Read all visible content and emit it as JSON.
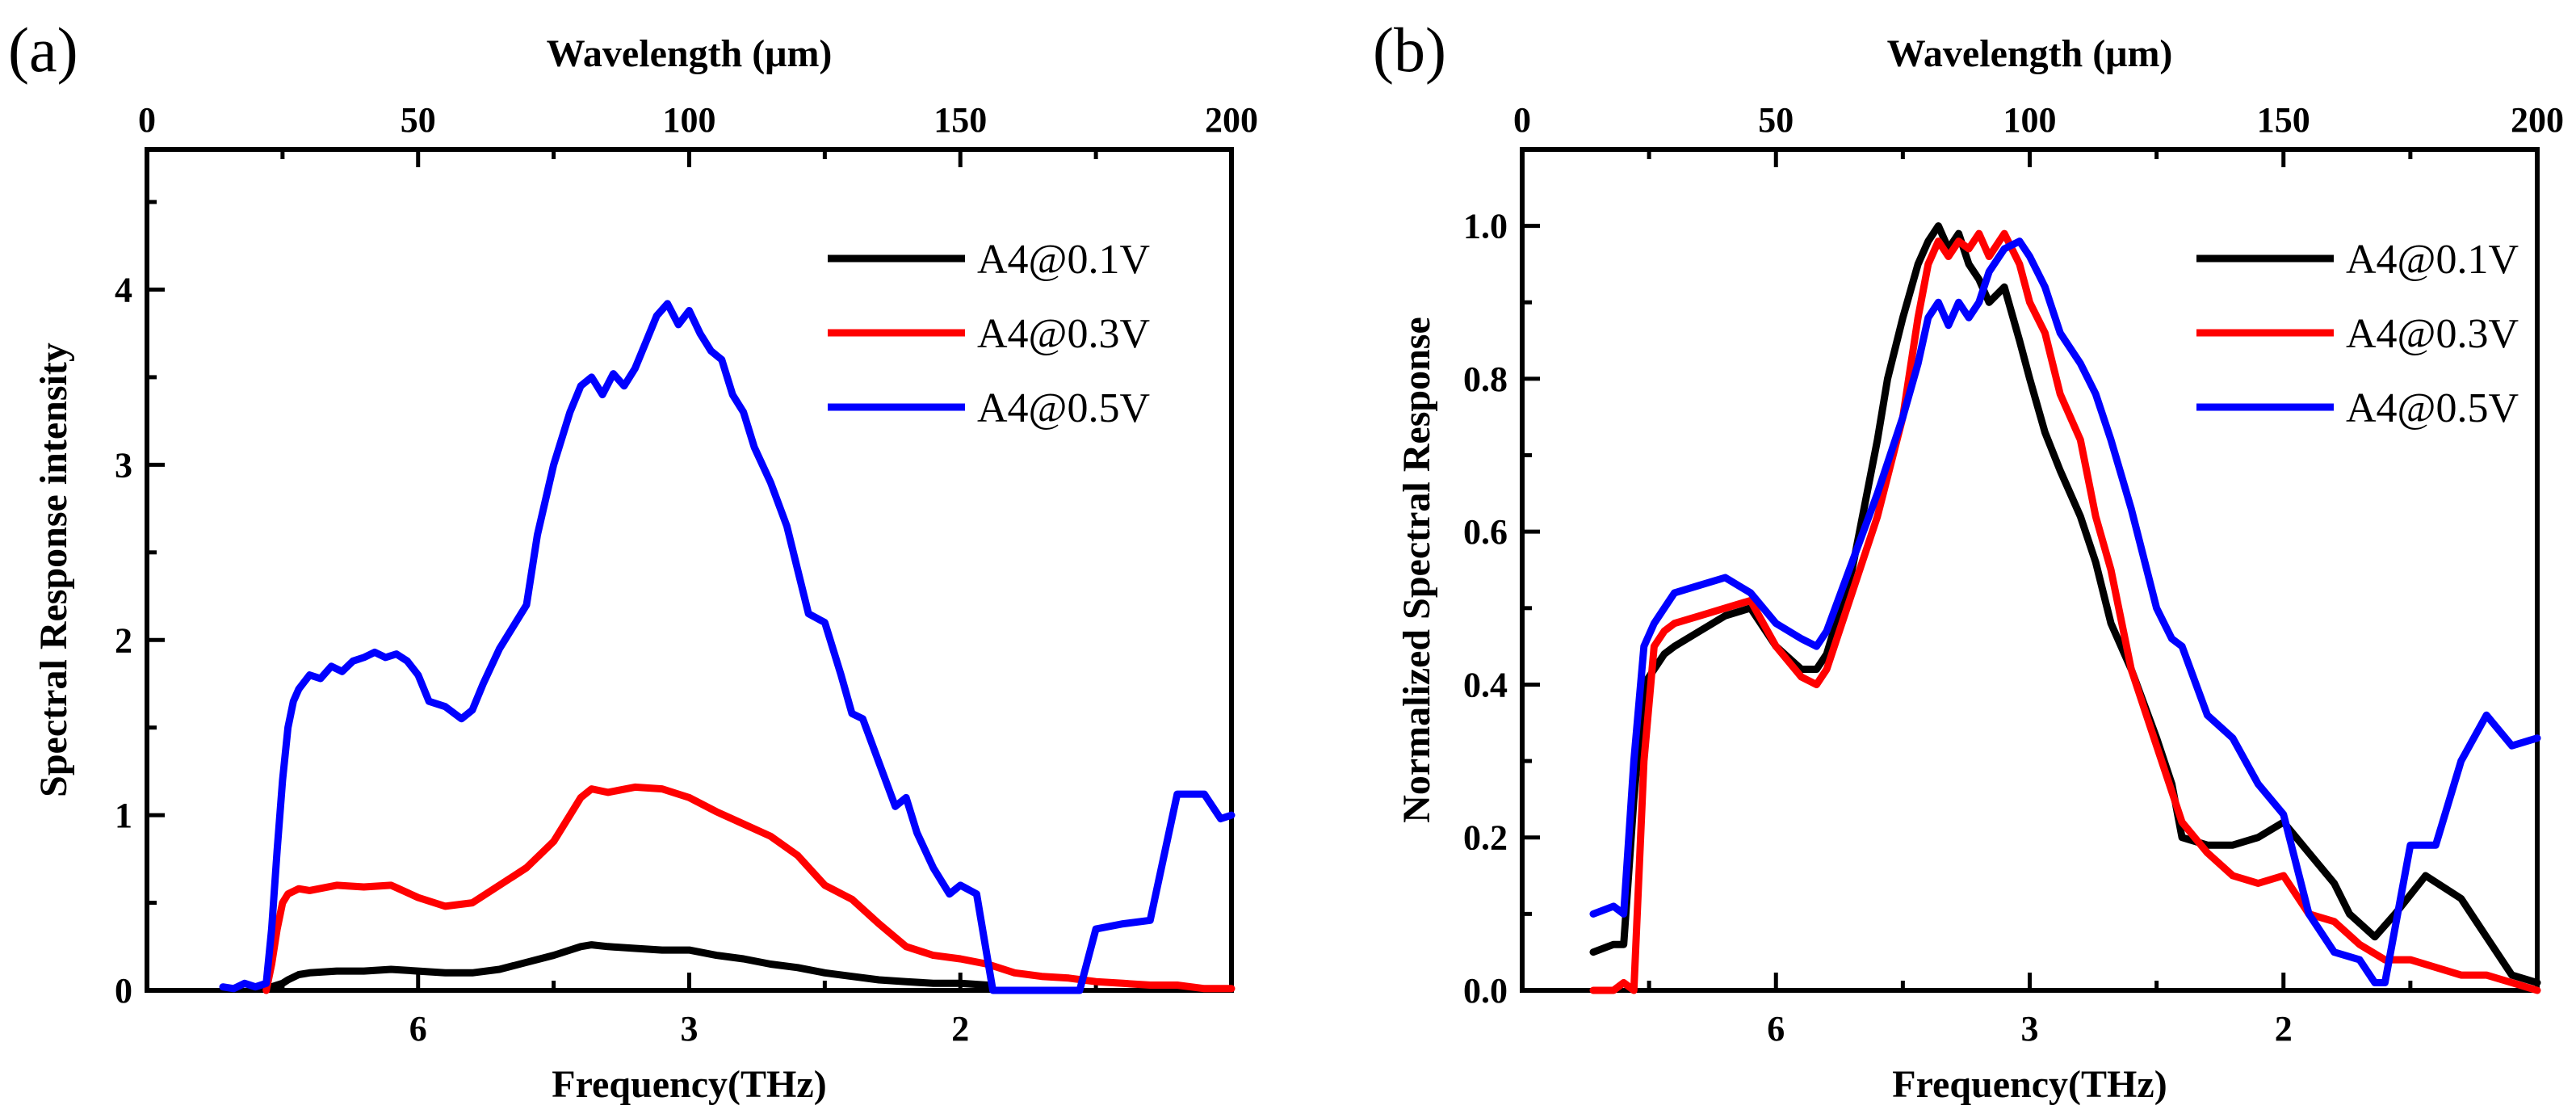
{
  "chart_data": [
    {
      "type": "line",
      "panel_label": "(a)",
      "xlabel": "Frequency(THz)",
      "x2label": "Wavelength (μm)",
      "ylabel": "Spectral Response intensity",
      "wavelength_range": [
        0,
        200
      ],
      "ylim": [
        0,
        4.8
      ],
      "bottom_ticks": [
        {
          "label": "6",
          "wl": 50
        },
        {
          "label": "3",
          "wl": 100
        },
        {
          "label": "2",
          "wl": 150
        }
      ],
      "top_ticks": [
        "0",
        "50",
        "100",
        "150",
        "200"
      ],
      "top_tick_values": [
        0,
        50,
        100,
        150,
        200
      ],
      "y_ticks": [
        "0",
        "1",
        "2",
        "3",
        "4"
      ],
      "y_tick_values": [
        0,
        1,
        2,
        3,
        4
      ],
      "legend": [
        "A4@0.1V",
        "A4@0.3V",
        "A4@0.5V"
      ],
      "legend_position": "top-right",
      "series": [
        {
          "name": "A4@0.1V",
          "color": "#000000",
          "x": [
            23,
            25,
            26,
            28,
            30,
            35,
            40,
            45,
            50,
            55,
            60,
            65,
            70,
            75,
            78,
            80,
            82,
            85,
            90,
            95,
            100,
            105,
            110,
            115,
            120,
            125,
            130,
            135,
            140,
            145,
            150,
            155
          ],
          "y": [
            0.02,
            0.04,
            0.06,
            0.09,
            0.1,
            0.11,
            0.11,
            0.12,
            0.11,
            0.1,
            0.1,
            0.12,
            0.16,
            0.2,
            0.23,
            0.25,
            0.26,
            0.25,
            0.24,
            0.23,
            0.23,
            0.2,
            0.18,
            0.15,
            0.13,
            0.1,
            0.08,
            0.06,
            0.05,
            0.04,
            0.04,
            0.03
          ]
        },
        {
          "name": "A4@0.3V",
          "color": "#ff0000",
          "x": [
            22,
            23,
            24,
            25,
            26,
            28,
            30,
            35,
            40,
            45,
            50,
            55,
            60,
            65,
            70,
            75,
            78,
            80,
            82,
            85,
            90,
            95,
            100,
            105,
            110,
            115,
            120,
            125,
            130,
            135,
            140,
            145,
            150,
            155,
            160,
            165,
            170,
            175,
            180,
            185,
            190,
            195,
            200
          ],
          "y": [
            0.0,
            0.15,
            0.35,
            0.5,
            0.55,
            0.58,
            0.57,
            0.6,
            0.59,
            0.6,
            0.53,
            0.48,
            0.5,
            0.6,
            0.7,
            0.85,
            1.0,
            1.1,
            1.15,
            1.13,
            1.16,
            1.15,
            1.1,
            1.02,
            0.95,
            0.88,
            0.77,
            0.6,
            0.52,
            0.38,
            0.25,
            0.2,
            0.18,
            0.15,
            0.1,
            0.08,
            0.07,
            0.05,
            0.04,
            0.03,
            0.03,
            0.01,
            0.01
          ]
        },
        {
          "name": "A4@0.5V",
          "color": "#0000ff",
          "x": [
            14,
            16,
            18,
            20,
            22,
            23,
            24,
            25,
            26,
            27,
            28,
            30,
            32,
            34,
            36,
            38,
            40,
            42,
            44,
            46,
            48,
            50,
            52,
            55,
            58,
            60,
            62,
            65,
            68,
            70,
            72,
            75,
            78,
            80,
            82,
            84,
            86,
            88,
            90,
            92,
            94,
            96,
            98,
            100,
            102,
            104,
            106,
            108,
            110,
            112,
            115,
            118,
            120,
            122,
            125,
            128,
            130,
            132,
            135,
            138,
            140,
            142,
            145,
            148,
            150,
            153,
            156,
            172,
            175,
            180,
            185,
            190,
            195,
            198,
            200
          ],
          "y": [
            0.02,
            0.01,
            0.04,
            0.02,
            0.04,
            0.35,
            0.8,
            1.2,
            1.5,
            1.65,
            1.72,
            1.8,
            1.78,
            1.85,
            1.82,
            1.88,
            1.9,
            1.93,
            1.9,
            1.92,
            1.88,
            1.8,
            1.65,
            1.62,
            1.55,
            1.6,
            1.75,
            1.95,
            2.1,
            2.2,
            2.6,
            3.0,
            3.3,
            3.45,
            3.5,
            3.4,
            3.52,
            3.45,
            3.55,
            3.7,
            3.85,
            3.92,
            3.8,
            3.88,
            3.75,
            3.65,
            3.6,
            3.4,
            3.3,
            3.1,
            2.9,
            2.65,
            2.4,
            2.15,
            2.1,
            1.8,
            1.58,
            1.55,
            1.3,
            1.05,
            1.1,
            0.9,
            0.7,
            0.55,
            0.6,
            0.55,
            0.0,
            0.0,
            0.35,
            0.38,
            0.4,
            1.12,
            1.12,
            0.98,
            1.0
          ]
        }
      ]
    },
    {
      "type": "line",
      "panel_label": "(b)",
      "xlabel": "Frequency(THz)",
      "x2label": "Wavelength (μm)",
      "ylabel": "Normalized Spectral Response",
      "wavelength_range": [
        0,
        200
      ],
      "ylim": [
        0,
        1.1
      ],
      "bottom_ticks": [
        {
          "label": "6",
          "wl": 50
        },
        {
          "label": "3",
          "wl": 100
        },
        {
          "label": "2",
          "wl": 150
        }
      ],
      "top_ticks": [
        "0",
        "50",
        "100",
        "150",
        "200"
      ],
      "top_tick_values": [
        0,
        50,
        100,
        150,
        200
      ],
      "y_ticks": [
        "0.0",
        "0.2",
        "0.4",
        "0.6",
        "0.8",
        "1.0"
      ],
      "y_tick_values": [
        0.0,
        0.2,
        0.4,
        0.6,
        0.8,
        1.0
      ],
      "legend": [
        "A4@0.1V",
        "A4@0.3V",
        "A4@0.5V"
      ],
      "legend_position": "top-right",
      "series": [
        {
          "name": "A4@0.1V",
          "color": "#000000",
          "x": [
            14,
            18,
            20,
            22,
            24,
            26,
            28,
            30,
            35,
            40,
            45,
            50,
            55,
            58,
            60,
            65,
            70,
            72,
            75,
            78,
            80,
            82,
            84,
            86,
            88,
            90,
            92,
            95,
            98,
            100,
            103,
            106,
            110,
            113,
            116,
            120,
            125,
            128,
            130,
            135,
            140,
            145,
            150,
            155,
            160,
            163,
            168,
            172,
            178,
            185,
            190,
            195,
            200
          ],
          "y": [
            0.05,
            0.06,
            0.06,
            0.25,
            0.4,
            0.42,
            0.44,
            0.45,
            0.47,
            0.49,
            0.5,
            0.45,
            0.42,
            0.42,
            0.44,
            0.55,
            0.72,
            0.8,
            0.88,
            0.95,
            0.98,
            1.0,
            0.97,
            0.99,
            0.95,
            0.93,
            0.9,
            0.92,
            0.85,
            0.8,
            0.73,
            0.68,
            0.62,
            0.56,
            0.48,
            0.42,
            0.33,
            0.27,
            0.2,
            0.19,
            0.19,
            0.2,
            0.22,
            0.18,
            0.14,
            0.1,
            0.07,
            0.1,
            0.15,
            0.12,
            0.07,
            0.02,
            0.01
          ]
        },
        {
          "name": "A4@0.3V",
          "color": "#ff0000",
          "x": [
            14,
            18,
            20,
            22,
            24,
            26,
            28,
            30,
            35,
            40,
            45,
            50,
            55,
            58,
            60,
            65,
            70,
            75,
            78,
            80,
            82,
            84,
            86,
            88,
            90,
            92,
            95,
            98,
            100,
            103,
            106,
            110,
            113,
            116,
            120,
            125,
            130,
            135,
            140,
            145,
            150,
            155,
            160,
            165,
            170,
            175,
            180,
            185,
            190,
            195,
            200
          ],
          "y": [
            0.0,
            0.0,
            0.01,
            0.0,
            0.3,
            0.45,
            0.47,
            0.48,
            0.49,
            0.5,
            0.51,
            0.45,
            0.41,
            0.4,
            0.42,
            0.52,
            0.62,
            0.75,
            0.88,
            0.95,
            0.98,
            0.96,
            0.98,
            0.97,
            0.99,
            0.96,
            0.99,
            0.95,
            0.9,
            0.86,
            0.78,
            0.72,
            0.62,
            0.55,
            0.42,
            0.32,
            0.22,
            0.18,
            0.15,
            0.14,
            0.15,
            0.1,
            0.09,
            0.06,
            0.04,
            0.04,
            0.03,
            0.02,
            0.02,
            0.01,
            0.0
          ]
        },
        {
          "name": "A4@0.5V",
          "color": "#0000ff",
          "x": [
            14,
            18,
            20,
            22,
            24,
            26,
            28,
            30,
            35,
            40,
            45,
            50,
            55,
            58,
            60,
            65,
            70,
            75,
            78,
            80,
            82,
            84,
            86,
            88,
            90,
            92,
            95,
            98,
            100,
            103,
            106,
            110,
            113,
            116,
            120,
            125,
            128,
            130,
            135,
            140,
            145,
            150,
            155,
            160,
            165,
            168,
            170,
            175,
            180,
            185,
            190,
            195,
            200
          ],
          "y": [
            0.1,
            0.11,
            0.1,
            0.3,
            0.45,
            0.48,
            0.5,
            0.52,
            0.53,
            0.54,
            0.52,
            0.48,
            0.46,
            0.45,
            0.47,
            0.56,
            0.65,
            0.75,
            0.82,
            0.88,
            0.9,
            0.87,
            0.9,
            0.88,
            0.9,
            0.94,
            0.97,
            0.98,
            0.96,
            0.92,
            0.86,
            0.82,
            0.78,
            0.72,
            0.63,
            0.5,
            0.46,
            0.45,
            0.36,
            0.33,
            0.27,
            0.23,
            0.1,
            0.05,
            0.04,
            0.01,
            0.01,
            0.19,
            0.19,
            0.3,
            0.36,
            0.32,
            0.33
          ]
        }
      ]
    }
  ]
}
